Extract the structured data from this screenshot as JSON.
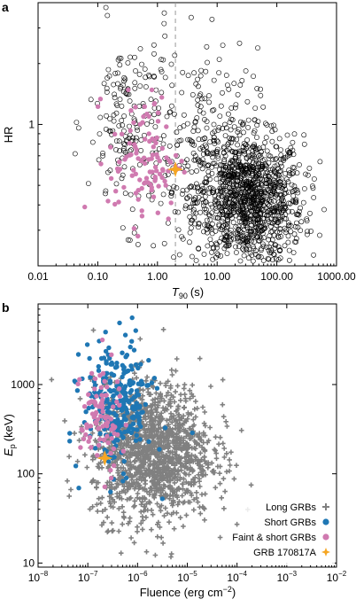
{
  "chart_data": [
    {
      "panel": "a",
      "type": "scatter",
      "xlabel": "T",
      "xlabel_sub": "90",
      "xlabel_unit": "(s)",
      "ylabel": "HR",
      "xscale": "log",
      "yscale": "log",
      "xlim": [
        0.01,
        1000
      ],
      "ylim": [
        0.2,
        4
      ],
      "xticks": [
        0.01,
        0.1,
        1,
        10,
        100,
        1000
      ],
      "xtick_labels": [
        "0.01",
        "0.10",
        "1.00",
        "10.00",
        "100.00",
        "1000.00"
      ],
      "yticks": [
        1
      ],
      "ytick_labels": [
        "1"
      ],
      "vline_x": 2.0,
      "colors": {
        "long": "#000000",
        "short": "#d07ab0",
        "grb": "#f5a623"
      },
      "series": [
        {
          "name": "",
          "marker": "open-circle",
          "clusters": [
            {
              "cx": 35,
              "cy": 0.42,
              "sx": 0.45,
              "sy": 0.16,
              "n": 1150
            },
            {
              "cx": 0.35,
              "cy": 1.0,
              "sx": 0.35,
              "sy": 0.24,
              "n": 180
            },
            {
              "cx": 6,
              "cy": 0.75,
              "sx": 0.45,
              "sy": 0.25,
              "n": 240
            }
          ]
        },
        {
          "name": "",
          "marker": "filled-circle",
          "clusters": [
            {
              "cx": 0.6,
              "cy": 0.68,
              "sx": 0.3,
              "sy": 0.16,
              "n": 110
            }
          ]
        },
        {
          "name": "",
          "marker": "star",
          "points": [
            {
              "x": 2.0,
              "y": 0.6
            }
          ]
        }
      ]
    },
    {
      "panel": "b",
      "type": "scatter",
      "xlabel": "Fluence (erg cm",
      "xlabel_sup": "−2",
      "xlabel_close": ")",
      "ylabel": "E",
      "ylabel_sub": "p",
      "ylabel_unit": "(keV)",
      "xscale": "log",
      "yscale": "log",
      "xlim": [
        1e-08,
        0.01
      ],
      "ylim": [
        9,
        8000
      ],
      "xticks": [
        1e-08,
        1e-07,
        1e-06,
        1e-05,
        0.0001,
        0.001,
        0.01
      ],
      "xtick_exponents": [
        "−8",
        "−7",
        "−6",
        "−5",
        "−4",
        "−3",
        "−2"
      ],
      "yticks": [
        10,
        100,
        1000
      ],
      "ytick_labels": [
        "10",
        "100",
        "1000"
      ],
      "legend": "bottom-right",
      "colors": {
        "long": "#808080",
        "short": "#1f77b4",
        "faint": "#d07ab0",
        "grb": "#f5a623"
      },
      "series": [
        {
          "name": "Long GRBs",
          "marker": "plus",
          "clusters": [
            {
              "cx": 2e-06,
              "cy": 180,
              "sx": 0.6,
              "sy": 0.38,
              "n": 1450
            }
          ]
        },
        {
          "name": "Short GRBs",
          "marker": "filled-circle",
          "clusters": [
            {
              "cx": 4e-07,
              "cy": 600,
              "sx": 0.35,
              "sy": 0.35,
              "n": 260
            }
          ]
        },
        {
          "name": "Faint & short GRBs",
          "marker": "filled-circle",
          "clusters": [
            {
              "cx": 1.8e-07,
              "cy": 420,
              "sx": 0.2,
              "sy": 0.32,
              "n": 90
            }
          ]
        },
        {
          "name": "GRB 170817A",
          "marker": "star",
          "points": [
            {
              "x": 2.2e-07,
              "y": 150
            }
          ]
        }
      ]
    }
  ]
}
